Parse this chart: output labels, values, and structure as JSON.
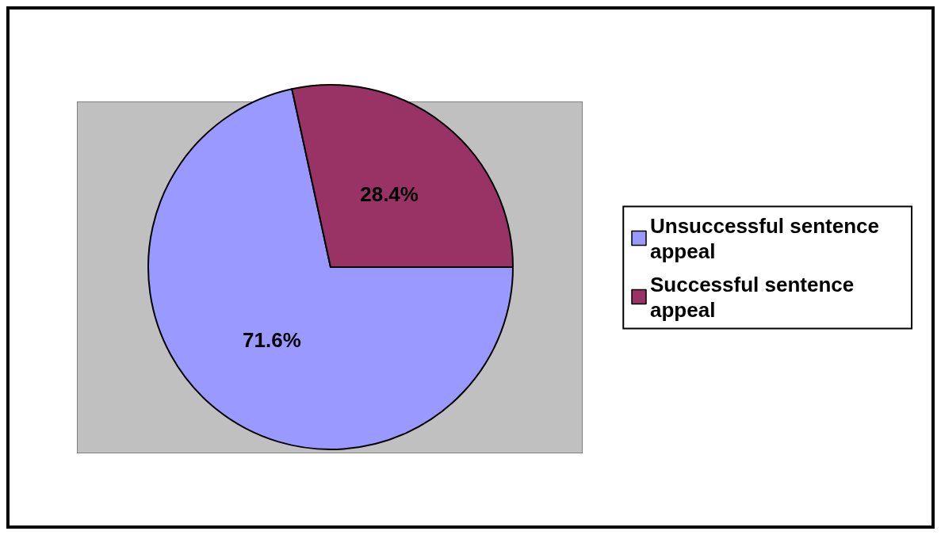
{
  "chart_data": {
    "type": "pie",
    "categories": [
      "Unsuccessful sentence appeal",
      "Successful sentence appeal"
    ],
    "values": [
      71.6,
      28.4
    ],
    "colors": [
      "#9999ff",
      "#993366"
    ],
    "value_labels": [
      "71.6%",
      "28.4%"
    ],
    "legend": "right"
  }
}
